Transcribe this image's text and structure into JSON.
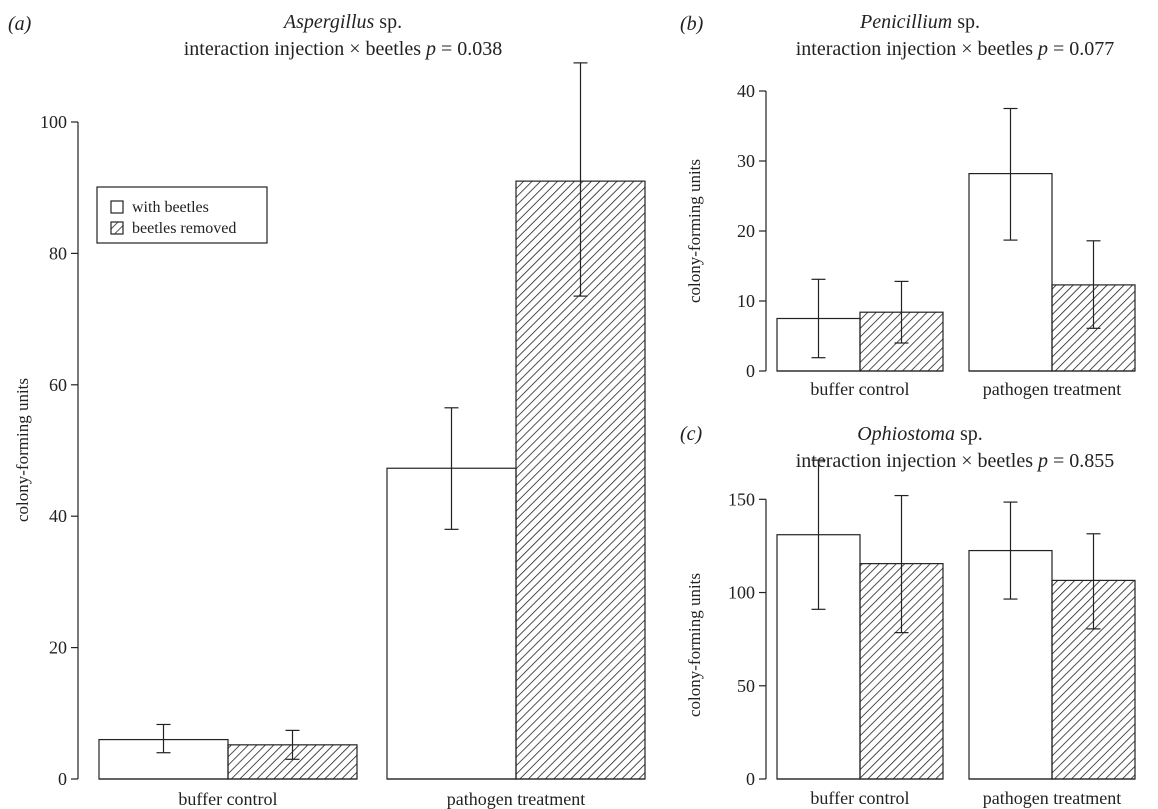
{
  "colors": {
    "line": "#222222",
    "bar_fill_with": "#ffffff",
    "hatch": "#222222",
    "background": "#ffffff"
  },
  "chart_data": [
    {
      "panel": "(a)",
      "type": "bar",
      "title_italic": "Aspergillus",
      "title_rest": " sp.",
      "subtitle_pre": "interaction injection × beetles ",
      "subtitle_p": "p",
      "subtitle_post": " = 0.038",
      "ylabel": "colony-forming units",
      "xlabel": "",
      "ylim": [
        0,
        100
      ],
      "yticks": [
        0,
        20,
        40,
        60,
        80,
        100
      ],
      "categories": [
        "buffer control",
        "pathogen treatment"
      ],
      "series": [
        {
          "name": "with beetles",
          "pattern": "open",
          "values": [
            6,
            47.3
          ],
          "err_low": [
            4,
            38
          ],
          "err_high": [
            8.3,
            56.5
          ]
        },
        {
          "name": "beetles removed",
          "pattern": "hatched",
          "values": [
            5.2,
            91
          ],
          "err_low": [
            3,
            73.5
          ],
          "err_high": [
            7.4,
            109
          ]
        }
      ],
      "legend": {
        "position": "upper-left",
        "entries": [
          "with beetles",
          "beetles removed"
        ]
      }
    },
    {
      "panel": "(b)",
      "type": "bar",
      "title_italic": "Penicillium",
      "title_rest": " sp.",
      "subtitle_pre": "interaction injection × beetles ",
      "subtitle_p": "p",
      "subtitle_post": " = 0.077",
      "ylabel": "colony-forming units",
      "xlabel": "",
      "ylim": [
        0,
        40
      ],
      "yticks": [
        0,
        10,
        20,
        30,
        40
      ],
      "categories": [
        "buffer control",
        "pathogen treatment"
      ],
      "series": [
        {
          "name": "with beetles",
          "pattern": "open",
          "values": [
            7.5,
            28.2
          ],
          "err_low": [
            1.9,
            18.7
          ],
          "err_high": [
            13.1,
            37.5
          ]
        },
        {
          "name": "beetles removed",
          "pattern": "hatched",
          "values": [
            8.4,
            12.3
          ],
          "err_low": [
            4,
            6.1
          ],
          "err_high": [
            12.8,
            18.6
          ]
        }
      ]
    },
    {
      "panel": "(c)",
      "type": "bar",
      "title_italic": "Ophiostoma",
      "title_rest": " sp.",
      "subtitle_pre": "interaction injection × beetles ",
      "subtitle_p": "p",
      "subtitle_post": " = 0.855",
      "ylabel": "colony-forming units",
      "xlabel": "",
      "ylim": [
        0,
        170
      ],
      "yticks": [
        0,
        50,
        100,
        150
      ],
      "categories": [
        "buffer control",
        "pathogen treatment"
      ],
      "series": [
        {
          "name": "with beetles",
          "pattern": "open",
          "values": [
            131,
            122.5
          ],
          "err_low": [
            91,
            96.5
          ],
          "err_high": [
            171,
            148.5
          ]
        },
        {
          "name": "beetles removed",
          "pattern": "hatched",
          "values": [
            115.5,
            106.5
          ],
          "err_low": [
            78.5,
            80.5
          ],
          "err_high": [
            152,
            131.5
          ]
        }
      ]
    }
  ]
}
